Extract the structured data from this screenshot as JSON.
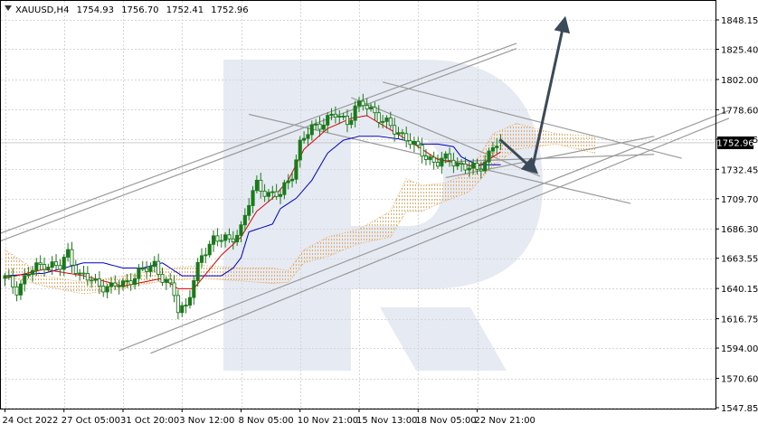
{
  "header": {
    "symbol": "XAUUSD,H4",
    "open": "1754.93",
    "high": "1756.70",
    "low": "1752.41",
    "close": "1752.96"
  },
  "colors": {
    "background": "#ffffff",
    "grid": "#d6d6d6",
    "candle": "#1a7a1a",
    "tenkan": "#e00000",
    "kijun": "#0000c0",
    "cloud": "#f0a050",
    "lines": "#9a9a9a",
    "arrow": "#3a4a58",
    "price_tag": "#000000",
    "watermark": "#e6ebf3"
  },
  "chart_data": {
    "type": "candlestick",
    "symbol": "XAUUSD",
    "timeframe": "H4",
    "ohlc_last": {
      "open": 1754.93,
      "high": 1756.7,
      "low": 1752.41,
      "close": 1752.96
    },
    "current_price": 1752.96,
    "current_price_label": "1752.96",
    "ylim": [
      1547.85,
      1860
    ],
    "y_ticks": [
      {
        "value": 1848.15,
        "label": "1848.15"
      },
      {
        "value": 1825.4,
        "label": "1825.40"
      },
      {
        "value": 1802.0,
        "label": "1802.00"
      },
      {
        "value": 1778.6,
        "label": "1778.60"
      },
      {
        "value": 1755.85,
        "label": "1755.85"
      },
      {
        "value": 1732.45,
        "label": "1732.45"
      },
      {
        "value": 1709.7,
        "label": "1709.70"
      },
      {
        "value": 1686.3,
        "label": "1686.30"
      },
      {
        "value": 1663.55,
        "label": "1663.55"
      },
      {
        "value": 1640.15,
        "label": "1640.15"
      },
      {
        "value": 1616.75,
        "label": "1616.75"
      },
      {
        "value": 1594.0,
        "label": "1594.00"
      },
      {
        "value": 1570.6,
        "label": "1570.60"
      },
      {
        "value": 1547.85,
        "label": "1547.85"
      }
    ],
    "x_ticks": [
      {
        "i": 0,
        "label": "24 Oct 2022"
      },
      {
        "i": 15,
        "label": "27 Oct 05:00"
      },
      {
        "i": 30,
        "label": "31 Oct 20:00"
      },
      {
        "i": 45,
        "label": "3 Nov 12:00"
      },
      {
        "i": 60,
        "label": "8 Nov 05:00"
      },
      {
        "i": 75,
        "label": "10 Nov 21:00"
      },
      {
        "i": 90,
        "label": "15 Nov 13:00"
      },
      {
        "i": 105,
        "label": "18 Nov 05:00"
      },
      {
        "i": 120,
        "label": "22 Nov 21:00"
      }
    ],
    "close_anchors": [
      [
        0,
        1648
      ],
      [
        3,
        1640
      ],
      [
        6,
        1652
      ],
      [
        10,
        1660
      ],
      [
        14,
        1656
      ],
      [
        16,
        1668
      ],
      [
        19,
        1650
      ],
      [
        23,
        1645
      ],
      [
        27,
        1640
      ],
      [
        31,
        1646
      ],
      [
        35,
        1653
      ],
      [
        38,
        1660
      ],
      [
        40,
        1648
      ],
      [
        43,
        1636
      ],
      [
        44,
        1624
      ],
      [
        46,
        1628
      ],
      [
        48,
        1645
      ],
      [
        50,
        1665
      ],
      [
        53,
        1680
      ],
      [
        57,
        1676
      ],
      [
        60,
        1688
      ],
      [
        62,
        1706
      ],
      [
        64,
        1720
      ],
      [
        67,
        1714
      ],
      [
        70,
        1712
      ],
      [
        73,
        1730
      ],
      [
        75,
        1752
      ],
      [
        78,
        1764
      ],
      [
        81,
        1770
      ],
      [
        84,
        1774
      ],
      [
        87,
        1770
      ],
      [
        89,
        1780
      ],
      [
        91,
        1782
      ],
      [
        94,
        1777
      ],
      [
        96,
        1770
      ],
      [
        99,
        1762
      ],
      [
        102,
        1758
      ],
      [
        104,
        1750
      ],
      [
        107,
        1742
      ],
      [
        110,
        1738
      ],
      [
        113,
        1740
      ],
      [
        116,
        1736
      ],
      [
        118,
        1733
      ],
      [
        120,
        1731
      ],
      [
        122,
        1740
      ],
      [
        124,
        1750
      ],
      [
        126,
        1753
      ]
    ],
    "tenkan_anchors": [
      [
        0,
        1648
      ],
      [
        10,
        1655
      ],
      [
        20,
        1650
      ],
      [
        30,
        1642
      ],
      [
        40,
        1648
      ],
      [
        44,
        1640
      ],
      [
        48,
        1640
      ],
      [
        55,
        1666
      ],
      [
        60,
        1680
      ],
      [
        64,
        1700
      ],
      [
        68,
        1710
      ],
      [
        72,
        1724
      ],
      [
        76,
        1748
      ],
      [
        82,
        1764
      ],
      [
        88,
        1772
      ],
      [
        92,
        1774
      ],
      [
        98,
        1763
      ],
      [
        104,
        1752
      ],
      [
        110,
        1740
      ],
      [
        116,
        1737
      ],
      [
        120,
        1734
      ],
      [
        126,
        1746
      ]
    ],
    "kijun_anchors": [
      [
        0,
        1650
      ],
      [
        10,
        1652
      ],
      [
        20,
        1660
      ],
      [
        25,
        1660
      ],
      [
        30,
        1656
      ],
      [
        35,
        1656
      ],
      [
        40,
        1660
      ],
      [
        45,
        1650
      ],
      [
        55,
        1650
      ],
      [
        58,
        1656
      ],
      [
        60,
        1664
      ],
      [
        62,
        1684
      ],
      [
        68,
        1690
      ],
      [
        70,
        1702
      ],
      [
        74,
        1710
      ],
      [
        78,
        1724
      ],
      [
        82,
        1745
      ],
      [
        86,
        1755
      ],
      [
        90,
        1758
      ],
      [
        95,
        1758
      ],
      [
        100,
        1756
      ],
      [
        106,
        1752
      ],
      [
        110,
        1752
      ],
      [
        114,
        1750
      ],
      [
        116,
        1742
      ],
      [
        120,
        1736
      ],
      [
        126,
        1736
      ]
    ],
    "cloud_anchors": [
      [
        0,
        1670,
        1650
      ],
      [
        10,
        1650,
        1642
      ],
      [
        20,
        1645,
        1636
      ],
      [
        30,
        1650,
        1640
      ],
      [
        40,
        1655,
        1646
      ],
      [
        50,
        1658,
        1648
      ],
      [
        60,
        1656,
        1646
      ],
      [
        68,
        1656,
        1644
      ],
      [
        72,
        1654,
        1645
      ],
      [
        76,
        1670,
        1660
      ],
      [
        82,
        1680,
        1665
      ],
      [
        90,
        1686,
        1675
      ],
      [
        98,
        1700,
        1680
      ],
      [
        102,
        1725,
        1700
      ],
      [
        106,
        1720,
        1700
      ],
      [
        112,
        1722,
        1708
      ],
      [
        118,
        1730,
        1715
      ],
      [
        124,
        1760,
        1735
      ],
      [
        130,
        1768,
        1748
      ],
      [
        140,
        1760,
        1752
      ],
      [
        150,
        1758,
        1745
      ]
    ],
    "trend_lines": [
      {
        "name": "channel-upper-outer",
        "i1": -2,
        "v1": 1682,
        "i2": 130,
        "v2": 1830
      },
      {
        "name": "channel-upper-inner",
        "i1": -2,
        "v1": 1676,
        "i2": 130,
        "v2": 1826
      },
      {
        "name": "channel-lower-outer",
        "i1": 29,
        "v1": 1592,
        "i2": 184,
        "v2": 1778
      },
      {
        "name": "channel-lower-inner",
        "i1": 37,
        "v1": 1590,
        "i2": 184,
        "v2": 1772
      },
      {
        "name": "triangle-upper",
        "i1": 96,
        "v1": 1800,
        "i2": 172,
        "v2": 1741
      },
      {
        "name": "triangle-lower",
        "i1": 62,
        "v1": 1775,
        "i2": 159,
        "v2": 1706
      },
      {
        "name": "triangle-side",
        "i1": 88,
        "v1": 1788,
        "i2": 136,
        "v2": 1727
      },
      {
        "name": "tenkan-projection",
        "i1": 110,
        "v1": 1738,
        "i2": 165,
        "v2": 1744
      },
      {
        "name": "kijun-projection",
        "i1": 112,
        "v1": 1726,
        "i2": 165,
        "v2": 1758
      }
    ],
    "forecast_arrows": [
      {
        "name": "forecast-arrow-down",
        "i1": 126,
        "v1": 1755,
        "i2": 134,
        "v2": 1733
      },
      {
        "name": "forecast-arrow-up",
        "i1": 134,
        "v1": 1733,
        "i2": 142,
        "v2": 1845
      }
    ]
  }
}
